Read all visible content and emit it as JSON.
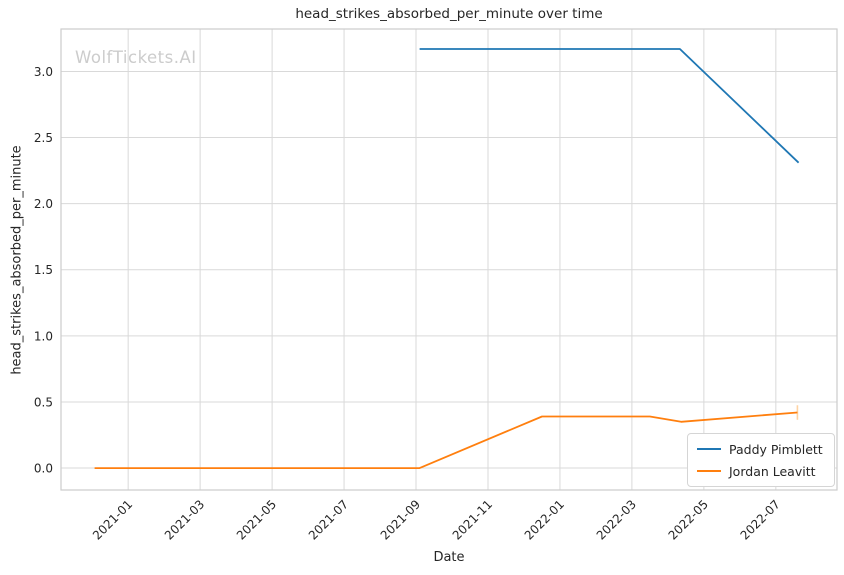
{
  "figure": {
    "watermark": "WolfTickets.AI"
  },
  "chart_data": {
    "type": "line",
    "title": "head_strikes_absorbed_per_minute over time",
    "xlabel": "Date",
    "ylabel": "head_strikes_absorbed_per_minute",
    "grid": true,
    "legend_position": "lower right",
    "x_ticks": [
      "2021-01",
      "2021-03",
      "2021-05",
      "2021-07",
      "2021-09",
      "2021-11",
      "2022-01",
      "2022-03",
      "2022-05",
      "2022-07"
    ],
    "y_ticks": [
      "0.0",
      "0.5",
      "1.0",
      "1.5",
      "2.0",
      "2.5",
      "3.0"
    ],
    "xlim": [
      "2020-11-05",
      "2022-08-22"
    ],
    "ylim": [
      -0.166,
      3.321
    ],
    "series": [
      {
        "name": "Paddy Pimblett",
        "color": "#1f77b4",
        "points": [
          [
            "2021-09-04",
            3.17
          ],
          [
            "2022-04-11",
            3.17
          ],
          [
            "2022-07-20",
            2.31
          ]
        ]
      },
      {
        "name": "Jordan Leavitt",
        "color": "#ff7f0e",
        "points": [
          [
            "2020-12-03",
            0.0
          ],
          [
            "2021-09-04",
            0.0
          ],
          [
            "2021-12-16",
            0.39
          ],
          [
            "2022-03-16",
            0.39
          ],
          [
            "2022-04-12",
            0.35
          ],
          [
            "2022-07-19",
            0.42
          ]
        ],
        "error_bar": {
          "x": "2022-07-19",
          "y": 0.42,
          "plus_minus": 0.055,
          "color": "#ffd3a3"
        }
      }
    ],
    "colors": {
      "grid": "#d9d9d9",
      "spine": "#cccccc",
      "tick_text": "#262626"
    }
  }
}
